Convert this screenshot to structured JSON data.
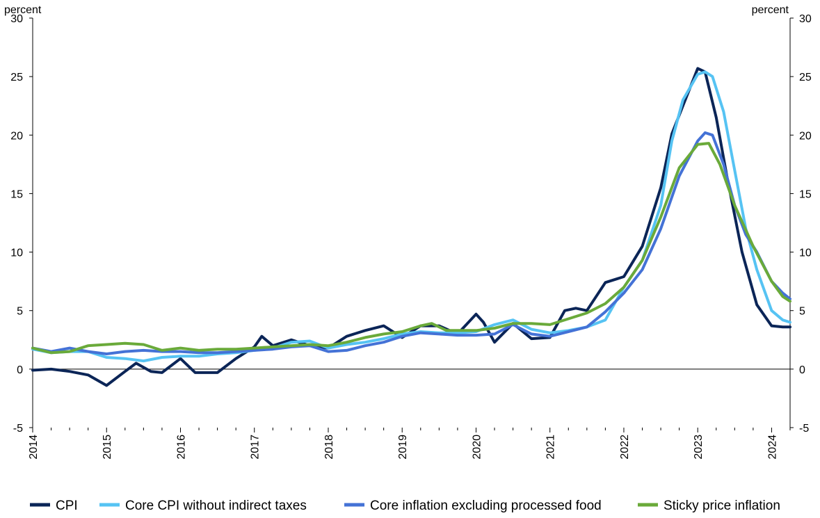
{
  "chart_data": {
    "type": "line",
    "y_unit_left": "percent",
    "y_unit_right": "percent",
    "ylim": [
      -5,
      30
    ],
    "yticks": [
      -5,
      0,
      5,
      10,
      15,
      20,
      25,
      30
    ],
    "xlim": [
      2014.0,
      2024.25
    ],
    "xticks": [
      "2014",
      "2015",
      "2016",
      "2017",
      "2018",
      "2019",
      "2020",
      "2021",
      "2022",
      "2023",
      "2024"
    ],
    "grid": false,
    "legend": "bottom",
    "series": [
      {
        "name": "CPI",
        "color": "#0b2557",
        "x": [
          2014.0,
          2014.25,
          2014.5,
          2014.75,
          2015.0,
          2015.25,
          2015.4,
          2015.6,
          2015.75,
          2016.0,
          2016.2,
          2016.5,
          2016.75,
          2017.0,
          2017.1,
          2017.25,
          2017.5,
          2017.75,
          2018.0,
          2018.25,
          2018.5,
          2018.75,
          2019.0,
          2019.25,
          2019.5,
          2019.75,
          2020.0,
          2020.1,
          2020.25,
          2020.5,
          2020.75,
          2021.0,
          2021.2,
          2021.35,
          2021.5,
          2021.75,
          2022.0,
          2022.25,
          2022.5,
          2022.65,
          2022.8,
          2023.0,
          2023.1,
          2023.25,
          2023.4,
          2023.6,
          2023.8,
          2024.0,
          2024.15,
          2024.25
        ],
        "y": [
          -0.1,
          0.0,
          -0.2,
          -0.5,
          -1.4,
          -0.2,
          0.5,
          -0.2,
          -0.3,
          0.9,
          -0.3,
          -0.3,
          0.9,
          1.9,
          2.8,
          2.0,
          2.5,
          2.0,
          1.8,
          2.8,
          3.3,
          3.7,
          2.7,
          3.7,
          3.7,
          3.0,
          4.7,
          4.0,
          2.3,
          3.9,
          2.6,
          2.7,
          5.0,
          5.2,
          5.0,
          7.4,
          7.9,
          10.5,
          15.5,
          20.1,
          22.5,
          25.7,
          25.4,
          21.5,
          16.3,
          10.0,
          5.5,
          3.7,
          3.6,
          3.6
        ]
      },
      {
        "name": "Core CPI without indirect taxes",
        "color": "#56c3f3",
        "x": [
          2014.0,
          2014.25,
          2014.5,
          2014.75,
          2015.0,
          2015.25,
          2015.5,
          2015.75,
          2016.0,
          2016.25,
          2016.5,
          2016.75,
          2017.0,
          2017.25,
          2017.5,
          2017.75,
          2018.0,
          2018.25,
          2018.5,
          2018.75,
          2019.0,
          2019.25,
          2019.5,
          2019.75,
          2020.0,
          2020.25,
          2020.5,
          2020.75,
          2021.0,
          2021.25,
          2021.5,
          2021.75,
          2022.0,
          2022.25,
          2022.5,
          2022.65,
          2022.8,
          2023.0,
          2023.1,
          2023.2,
          2023.35,
          2023.5,
          2023.65,
          2023.8,
          2024.0,
          2024.15,
          2024.25
        ],
        "y": [
          1.7,
          1.4,
          1.5,
          1.5,
          1.0,
          0.9,
          0.7,
          1.0,
          1.1,
          1.1,
          1.3,
          1.4,
          1.6,
          1.8,
          2.3,
          2.4,
          1.8,
          2.1,
          2.3,
          2.6,
          3.0,
          3.2,
          3.1,
          3.1,
          3.2,
          3.8,
          4.2,
          3.4,
          3.1,
          3.3,
          3.6,
          4.2,
          7.0,
          9.3,
          14.0,
          19.5,
          23.0,
          25.2,
          25.4,
          25.0,
          22.0,
          17.0,
          12.0,
          8.5,
          5.0,
          4.2,
          4.0
        ]
      },
      {
        "name": "Core inflation excluding processed food",
        "color": "#4472d6",
        "x": [
          2014.0,
          2014.25,
          2014.5,
          2014.75,
          2015.0,
          2015.25,
          2015.5,
          2015.75,
          2016.0,
          2016.25,
          2016.5,
          2016.75,
          2017.0,
          2017.25,
          2017.5,
          2017.75,
          2018.0,
          2018.25,
          2018.5,
          2018.75,
          2019.0,
          2019.25,
          2019.5,
          2019.75,
          2020.0,
          2020.25,
          2020.5,
          2020.75,
          2021.0,
          2021.25,
          2021.5,
          2021.75,
          2022.0,
          2022.25,
          2022.5,
          2022.75,
          2023.0,
          2023.1,
          2023.2,
          2023.35,
          2023.5,
          2023.65,
          2023.8,
          2024.0,
          2024.15,
          2024.25
        ],
        "y": [
          1.8,
          1.5,
          1.8,
          1.5,
          1.3,
          1.5,
          1.6,
          1.5,
          1.5,
          1.4,
          1.4,
          1.5,
          1.6,
          1.7,
          1.9,
          2.0,
          1.5,
          1.6,
          2.0,
          2.3,
          2.8,
          3.1,
          3.0,
          2.9,
          2.9,
          3.0,
          3.8,
          3.0,
          2.8,
          3.2,
          3.6,
          4.9,
          6.5,
          8.5,
          12.0,
          16.5,
          19.5,
          20.2,
          20.0,
          17.5,
          14.0,
          11.5,
          10.0,
          7.5,
          6.5,
          6.0
        ]
      },
      {
        "name": "Sticky price inflation",
        "color": "#6aaa3a",
        "x": [
          2014.0,
          2014.25,
          2014.5,
          2014.75,
          2015.0,
          2015.25,
          2015.5,
          2015.75,
          2016.0,
          2016.25,
          2016.5,
          2016.75,
          2017.0,
          2017.25,
          2017.5,
          2017.75,
          2018.0,
          2018.25,
          2018.5,
          2018.75,
          2019.0,
          2019.25,
          2019.4,
          2019.6,
          2019.75,
          2020.0,
          2020.25,
          2020.5,
          2020.75,
          2021.0,
          2021.25,
          2021.5,
          2021.75,
          2022.0,
          2022.25,
          2022.5,
          2022.75,
          2023.0,
          2023.15,
          2023.3,
          2023.5,
          2023.75,
          2024.0,
          2024.15,
          2024.25
        ],
        "y": [
          1.8,
          1.4,
          1.5,
          2.0,
          2.1,
          2.2,
          2.1,
          1.6,
          1.8,
          1.6,
          1.7,
          1.7,
          1.8,
          1.9,
          2.0,
          2.1,
          2.0,
          2.3,
          2.7,
          3.0,
          3.2,
          3.7,
          3.9,
          3.3,
          3.3,
          3.3,
          3.5,
          3.9,
          3.9,
          3.8,
          4.3,
          4.8,
          5.6,
          7.0,
          9.3,
          13.0,
          17.2,
          19.2,
          19.3,
          17.5,
          14.0,
          10.5,
          7.5,
          6.2,
          5.8
        ]
      }
    ]
  }
}
